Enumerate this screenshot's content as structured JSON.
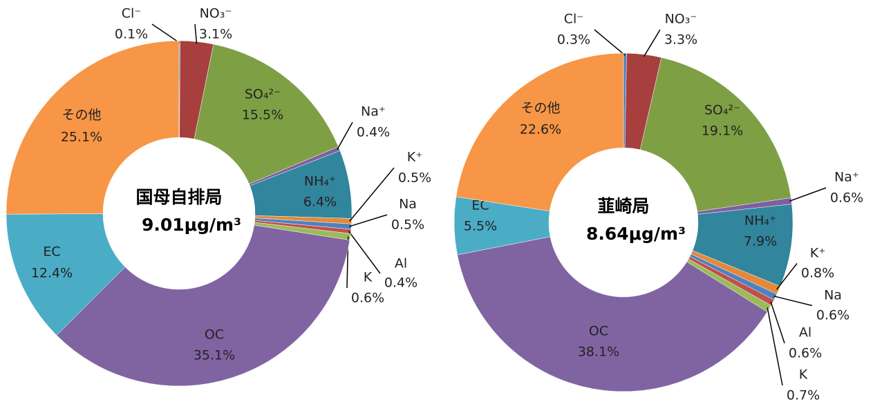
{
  "chart_data": [
    {
      "type": "donut",
      "title": "国母自排局",
      "subtitle": "9.01μg/m³",
      "categories": [
        "Cl⁻",
        "NO₃⁻",
        "SO₄²⁻",
        "Na⁺",
        "NH₄⁺",
        "K⁺",
        "Na",
        "Al",
        "K",
        "OC",
        "EC",
        "その他"
      ],
      "values": [
        0.1,
        3.1,
        15.5,
        0.4,
        6.4,
        0.5,
        0.5,
        0.4,
        0.6,
        35.1,
        12.4,
        25.1
      ],
      "value_labels": [
        "0.1%",
        "3.1%",
        "15.5%",
        "0.4%",
        "6.4%",
        "0.5%",
        "0.5%",
        "0.4%",
        "0.6%",
        "35.1%",
        "12.4%",
        "25.1%"
      ],
      "colors": [
        "#4f81bd",
        "#a63f3d",
        "#7f9f45",
        "#7e5fa0",
        "#31859c",
        "#e4883a",
        "#4f81bd",
        "#c0504d",
        "#9bbb59",
        "#8064a2",
        "#4bacc6",
        "#f79646"
      ]
    },
    {
      "type": "donut",
      "title": "韮崎局",
      "subtitle": "8.64μg/m³",
      "categories": [
        "Cl⁻",
        "NO₃⁻",
        "SO₄²⁻",
        "Na⁺",
        "NH₄⁺",
        "K⁺",
        "Na",
        "Al",
        "K",
        "OC",
        "EC",
        "その他"
      ],
      "values": [
        0.3,
        3.3,
        19.1,
        0.6,
        7.9,
        0.8,
        0.6,
        0.6,
        0.7,
        38.1,
        5.5,
        22.6
      ],
      "value_labels": [
        "0.3%",
        "3.3%",
        "19.1%",
        "0.6%",
        "7.9%",
        "0.8%",
        "0.6%",
        "0.6%",
        "0.7%",
        "38.1%",
        "5.5%",
        "22.6%"
      ],
      "colors": [
        "#4f81bd",
        "#a63f3d",
        "#7f9f45",
        "#7e5fa0",
        "#31859c",
        "#e4883a",
        "#4f81bd",
        "#c0504d",
        "#9bbb59",
        "#8064a2",
        "#4bacc6",
        "#f79646"
      ]
    }
  ]
}
